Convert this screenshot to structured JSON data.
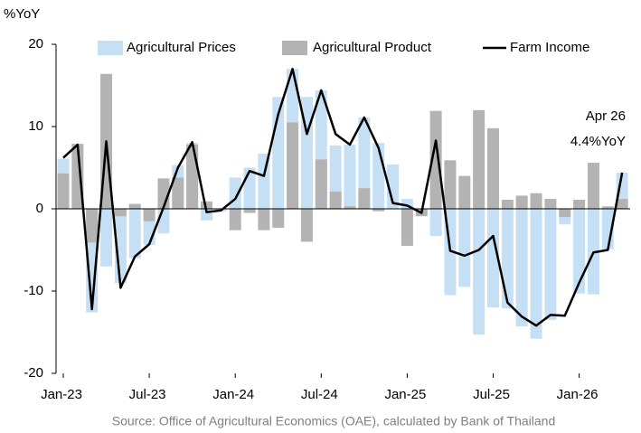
{
  "chart_data": {
    "type": "bar_line",
    "y_label": "%YoY",
    "categories": [
      "Jan-23",
      null,
      null,
      null,
      null,
      null,
      "Jul-23",
      null,
      null,
      null,
      null,
      null,
      "Jan-24",
      null,
      null,
      null,
      null,
      null,
      "Jul-24",
      null,
      null,
      null,
      null,
      null,
      "Jan-25",
      null,
      null,
      null,
      null,
      null,
      "Jul-25",
      null,
      null,
      null,
      null,
      null,
      "Jan-26",
      null,
      null,
      null
    ],
    "series": [
      {
        "name": "Agricultural Prices",
        "color": "#c5dff5",
        "kind": "bar",
        "values": [
          6.1,
          3.3,
          -12.6,
          -7.0,
          -9.0,
          -6.0,
          -4.4,
          -3.0,
          5.3,
          8.0,
          -1.4,
          -0.3,
          3.8,
          5.0,
          6.7,
          13.6,
          17.0,
          13.6,
          14.4,
          7.7,
          7.8,
          11.1,
          8.0,
          5.4,
          1.2,
          -0.7,
          -3.3,
          -10.5,
          -9.5,
          -15.3,
          -12.0,
          -12.1,
          -14.3,
          -15.8,
          -13.5,
          -1.9,
          -10.3,
          -10.4,
          -4.9,
          4.4
        ]
      },
      {
        "name": "Agricultural Product",
        "color": "#b3b3b3",
        "kind": "bar",
        "values": [
          4.3,
          7.9,
          -4.1,
          16.4,
          -0.9,
          0.6,
          -1.5,
          3.7,
          3.8,
          7.8,
          0.9,
          0.0,
          -2.6,
          -0.5,
          -2.6,
          -2.3,
          10.5,
          -4.0,
          6.0,
          2.1,
          0.3,
          2.5,
          -0.3,
          0.0,
          -4.5,
          -0.9,
          11.9,
          5.9,
          4.0,
          12.0,
          9.8,
          1.1,
          1.6,
          1.9,
          1.2,
          -1.0,
          1.1,
          5.6,
          0.3,
          1.2
        ]
      },
      {
        "name": "Farm Income",
        "color": "#000000",
        "kind": "line",
        "values": [
          6.2,
          7.8,
          -12.2,
          8.2,
          -9.6,
          -5.8,
          -4.3,
          0.2,
          5.0,
          8.1,
          -0.4,
          -0.2,
          1.2,
          4.6,
          4.0,
          11.5,
          17.0,
          9.1,
          14.4,
          9.1,
          7.8,
          11.1,
          7.4,
          0.7,
          0.4,
          -0.5,
          8.3,
          -5.1,
          -5.7,
          -5.0,
          -3.3,
          -11.4,
          -13.1,
          -14.2,
          -12.9,
          -13.0,
          -9.0,
          -5.3,
          -5.0,
          4.4
        ]
      }
    ],
    "annotations": [
      "Apr 26",
      "4.4%YoY"
    ],
    "source": "Source: Office of Agricultural Economics (OAE),  calculated by Bank of Thailand",
    "ylim": [
      -20,
      20
    ],
    "yticks": [
      -20,
      -10,
      0,
      10,
      20
    ],
    "legend": "top"
  }
}
